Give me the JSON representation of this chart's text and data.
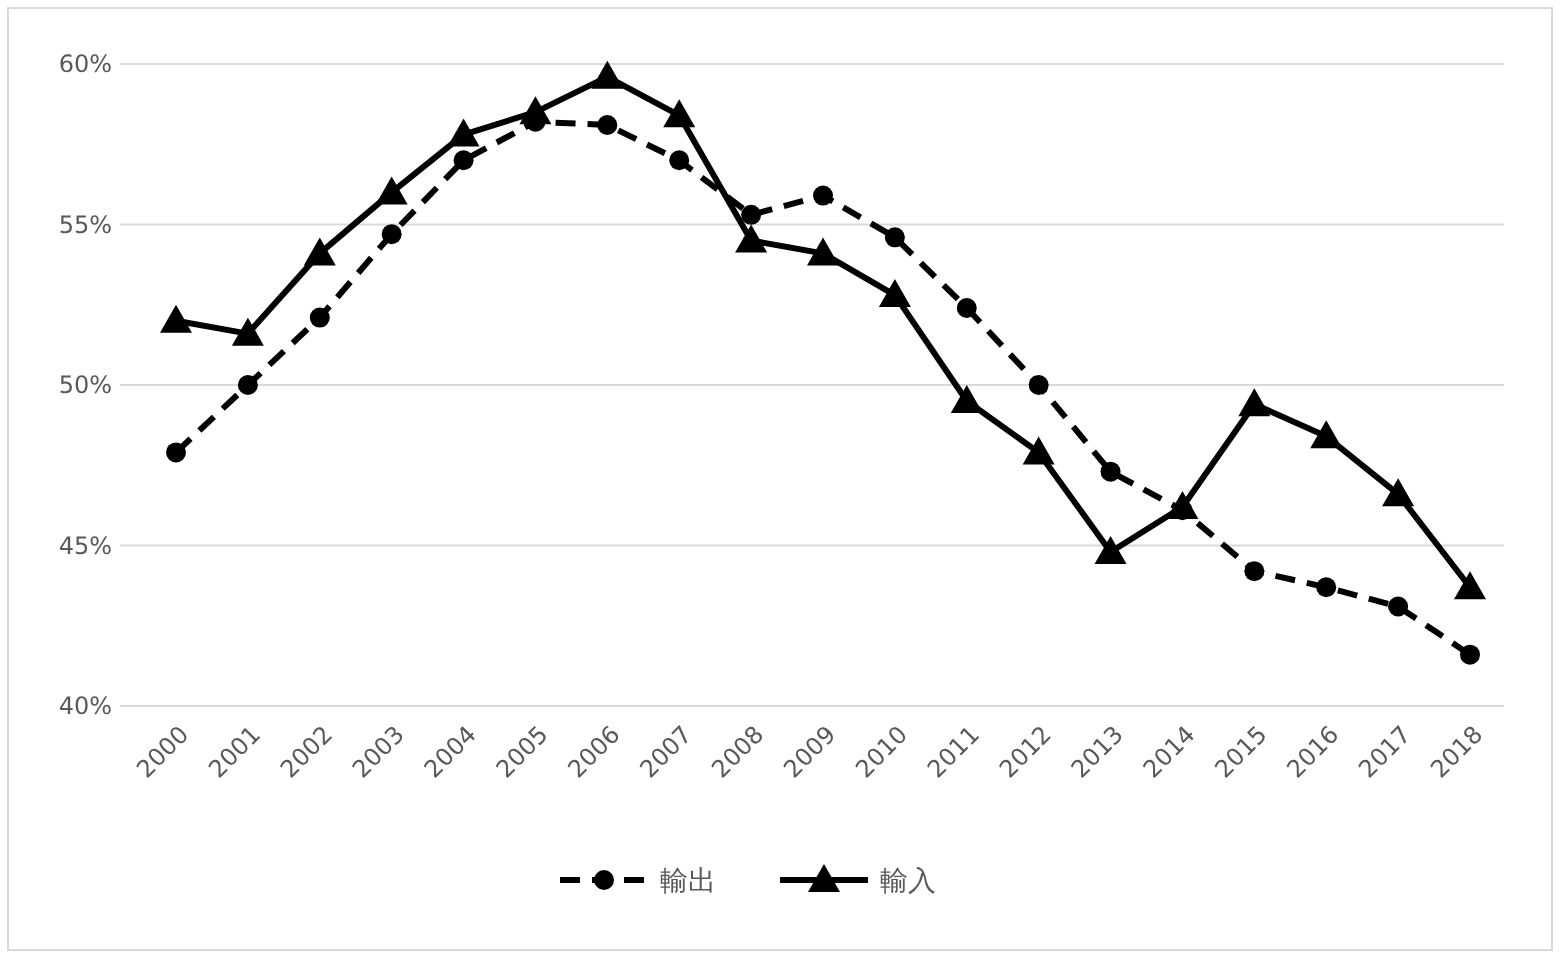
{
  "chart_data": {
    "type": "line",
    "categories": [
      "2000",
      "2001",
      "2002",
      "2003",
      "2004",
      "2005",
      "2006",
      "2007",
      "2008",
      "2009",
      "2010",
      "2011",
      "2012",
      "2013",
      "2014",
      "2015",
      "2016",
      "2017",
      "2018"
    ],
    "series": [
      {
        "name": "輸出",
        "color": "#000000",
        "marker": "circle",
        "line_style": "dashed",
        "values": [
          47.9,
          50.0,
          52.1,
          54.7,
          57.0,
          58.2,
          58.1,
          57.0,
          55.3,
          55.9,
          54.6,
          52.4,
          50.0,
          47.3,
          46.1,
          44.2,
          43.7,
          43.1,
          41.6
        ]
      },
      {
        "name": "輸入",
        "color": "#000000",
        "marker": "triangle",
        "line_style": "solid",
        "values": [
          52.0,
          51.6,
          54.1,
          56.0,
          57.8,
          58.5,
          59.6,
          58.4,
          54.5,
          54.1,
          52.8,
          49.5,
          47.9,
          44.8,
          46.2,
          49.4,
          48.4,
          46.6,
          43.7
        ]
      }
    ],
    "ylim": [
      40,
      60
    ],
    "yticks": [
      {
        "value": 40,
        "label": "40%"
      },
      {
        "value": 45,
        "label": "45%"
      },
      {
        "value": 50,
        "label": "50%"
      },
      {
        "value": 55,
        "label": "55%"
      },
      {
        "value": 60,
        "label": "60%"
      }
    ],
    "grid": "y",
    "legend": "bottom"
  }
}
